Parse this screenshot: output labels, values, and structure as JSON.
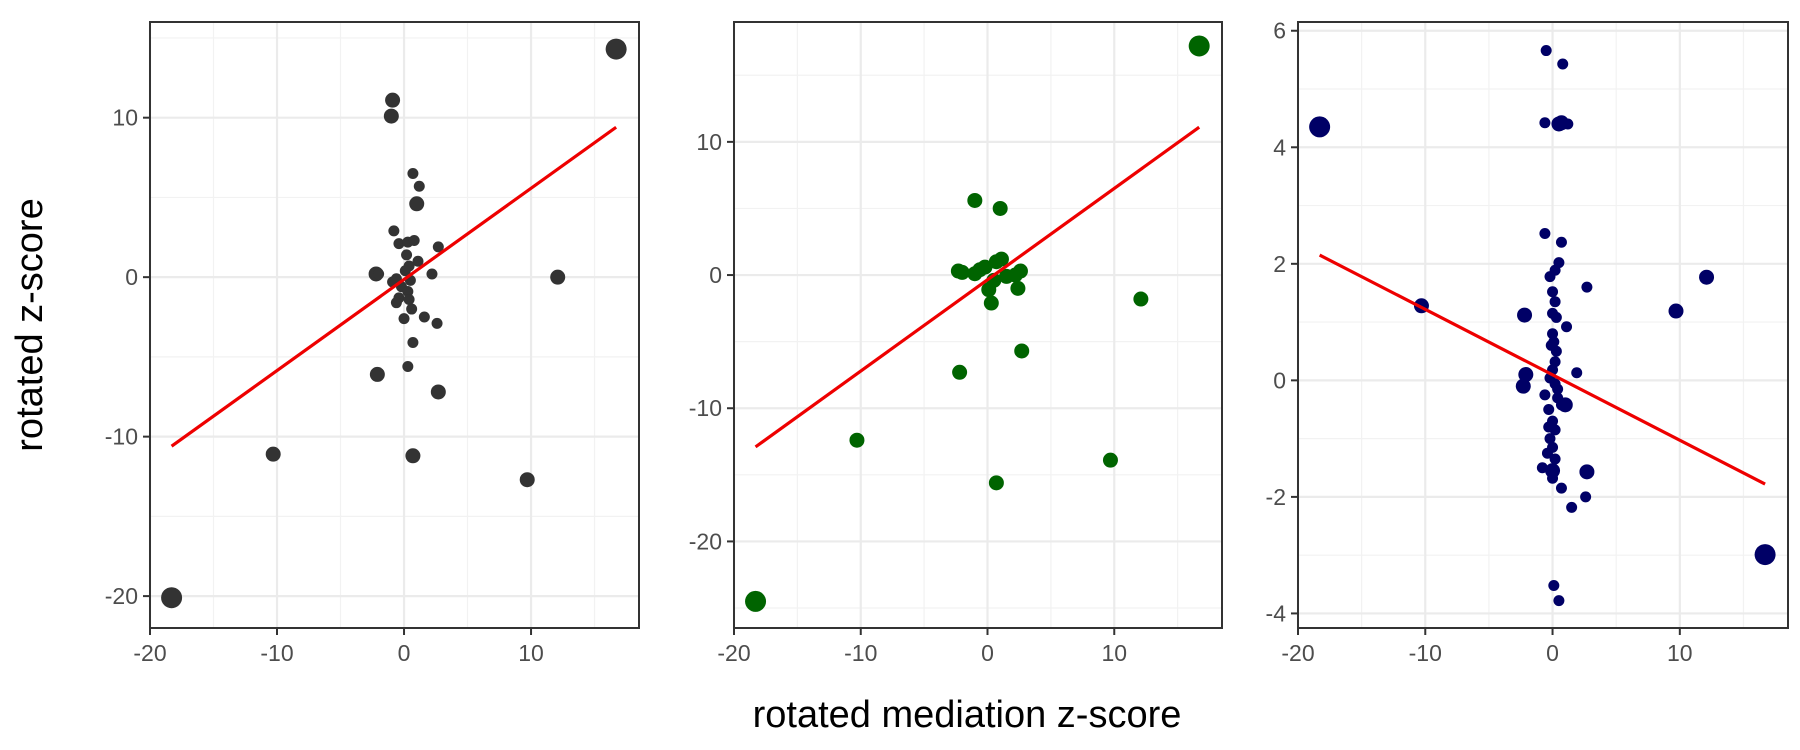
{
  "figure": {
    "xlabel": "rotated mediation z-score",
    "ylabel": "rotated z-score"
  },
  "chart_data": [
    {
      "type": "scatter",
      "xlim": [
        -20,
        18.5
      ],
      "ylim": [
        -22,
        16
      ],
      "xticks": [
        -20,
        -10,
        0,
        10
      ],
      "yticks": [
        -20,
        -10,
        0,
        10
      ],
      "grid": true,
      "point_color": "#333333",
      "line_color": "#ee0000",
      "fit_line": [
        [
          -18.3,
          -10.6
        ],
        [
          16.7,
          9.4
        ]
      ],
      "points": [
        {
          "x": 16.7,
          "y": 14.3,
          "s": "lg"
        },
        {
          "x": -18.3,
          "y": -20.1,
          "s": "lg"
        },
        {
          "x": -10.3,
          "y": -11.1,
          "s": "md"
        },
        {
          "x": 0.7,
          "y": -11.2,
          "s": "md"
        },
        {
          "x": 9.7,
          "y": -12.7,
          "s": "md"
        },
        {
          "x": 12.1,
          "y": 0.0,
          "s": "md"
        },
        {
          "x": -0.9,
          "y": 11.1,
          "s": "md"
        },
        {
          "x": -1.0,
          "y": 10.1,
          "s": "md"
        },
        {
          "x": 1.0,
          "y": 4.6,
          "s": "md"
        },
        {
          "x": -2.1,
          "y": -6.1,
          "s": "md"
        },
        {
          "x": 2.7,
          "y": -7.2,
          "s": "md"
        },
        {
          "x": -2.2,
          "y": 0.2,
          "s": "md"
        },
        {
          "x": -2.0,
          "y": 0.2,
          "s": "sm"
        },
        {
          "x": 0.7,
          "y": 6.5,
          "s": "sm"
        },
        {
          "x": 1.2,
          "y": 5.7,
          "s": "sm"
        },
        {
          "x": -0.8,
          "y": 2.9,
          "s": "sm"
        },
        {
          "x": -0.4,
          "y": 2.1,
          "s": "sm"
        },
        {
          "x": 0.3,
          "y": 2.2,
          "s": "sm"
        },
        {
          "x": 0.8,
          "y": 2.3,
          "s": "sm"
        },
        {
          "x": 2.7,
          "y": 1.9,
          "s": "sm"
        },
        {
          "x": 0.2,
          "y": 1.4,
          "s": "sm"
        },
        {
          "x": 1.1,
          "y": 1.0,
          "s": "sm"
        },
        {
          "x": 0.4,
          "y": 0.7,
          "s": "sm"
        },
        {
          "x": 0.1,
          "y": 0.4,
          "s": "sm"
        },
        {
          "x": 2.2,
          "y": 0.2,
          "s": "sm"
        },
        {
          "x": -0.6,
          "y": -0.1,
          "s": "sm"
        },
        {
          "x": -0.9,
          "y": -0.3,
          "s": "sm"
        },
        {
          "x": 0.5,
          "y": -0.2,
          "s": "sm"
        },
        {
          "x": -0.2,
          "y": -0.6,
          "s": "sm"
        },
        {
          "x": 0.3,
          "y": -0.9,
          "s": "sm"
        },
        {
          "x": -0.4,
          "y": -1.3,
          "s": "sm"
        },
        {
          "x": 0.4,
          "y": -1.4,
          "s": "sm"
        },
        {
          "x": -0.6,
          "y": -1.6,
          "s": "sm"
        },
        {
          "x": 0.6,
          "y": -2.0,
          "s": "sm"
        },
        {
          "x": 1.6,
          "y": -2.5,
          "s": "sm"
        },
        {
          "x": 0.0,
          "y": -2.6,
          "s": "sm"
        },
        {
          "x": 2.6,
          "y": -2.9,
          "s": "sm"
        },
        {
          "x": 0.7,
          "y": -4.1,
          "s": "sm"
        },
        {
          "x": 0.3,
          "y": -5.6,
          "s": "sm"
        }
      ]
    },
    {
      "type": "scatter",
      "xlim": [
        -20,
        18.5
      ],
      "ylim": [
        -26.5,
        19
      ],
      "xticks": [
        -20,
        -10,
        0,
        10
      ],
      "yticks": [
        -20,
        -10,
        0,
        10
      ],
      "grid": true,
      "point_color": "#006400",
      "line_color": "#ee0000",
      "fit_line": [
        [
          -18.3,
          -12.9
        ],
        [
          16.7,
          11.1
        ]
      ],
      "points": [
        {
          "x": 16.7,
          "y": 17.2,
          "s": "lg"
        },
        {
          "x": -18.3,
          "y": -24.5,
          "s": "lg"
        },
        {
          "x": -10.3,
          "y": -12.4,
          "s": "md"
        },
        {
          "x": 0.7,
          "y": -15.6,
          "s": "md"
        },
        {
          "x": 9.7,
          "y": -13.9,
          "s": "md"
        },
        {
          "x": 12.1,
          "y": -1.8,
          "s": "md"
        },
        {
          "x": -1.0,
          "y": 5.6,
          "s": "md"
        },
        {
          "x": 1.0,
          "y": 5.0,
          "s": "md"
        },
        {
          "x": -2.2,
          "y": -7.3,
          "s": "md"
        },
        {
          "x": 2.7,
          "y": -5.7,
          "s": "md"
        },
        {
          "x": -2.3,
          "y": 0.3,
          "s": "md"
        },
        {
          "x": -2.0,
          "y": 0.2,
          "s": "md"
        },
        {
          "x": -1.0,
          "y": 0.1,
          "s": "md"
        },
        {
          "x": -0.6,
          "y": 0.4,
          "s": "md"
        },
        {
          "x": -0.2,
          "y": 0.6,
          "s": "md"
        },
        {
          "x": 0.7,
          "y": 1.0,
          "s": "md"
        },
        {
          "x": 1.1,
          "y": 1.2,
          "s": "md"
        },
        {
          "x": 1.5,
          "y": -0.1,
          "s": "md"
        },
        {
          "x": 2.2,
          "y": 0.0,
          "s": "md"
        },
        {
          "x": 2.6,
          "y": 0.3,
          "s": "md"
        },
        {
          "x": 0.1,
          "y": -1.1,
          "s": "md"
        },
        {
          "x": 2.4,
          "y": -1.0,
          "s": "md"
        },
        {
          "x": 0.3,
          "y": -2.1,
          "s": "md"
        },
        {
          "x": 0.5,
          "y": -0.4,
          "s": "md"
        }
      ]
    },
    {
      "type": "scatter",
      "xlim": [
        -20,
        18.5
      ],
      "ylim": [
        -4.25,
        6.15
      ],
      "xticks": [
        -20,
        -10,
        0,
        10
      ],
      "yticks": [
        -4,
        -2,
        0,
        2,
        4,
        6
      ],
      "grid": true,
      "point_color": "#000066",
      "line_color": "#ee0000",
      "fit_line": [
        [
          -18.3,
          2.15
        ],
        [
          16.7,
          -1.78
        ]
      ],
      "points": [
        {
          "x": -18.3,
          "y": 4.35,
          "s": "lg"
        },
        {
          "x": 16.7,
          "y": -2.99,
          "s": "lg"
        },
        {
          "x": -10.3,
          "y": 1.28,
          "s": "md"
        },
        {
          "x": 9.7,
          "y": 1.19,
          "s": "md"
        },
        {
          "x": 12.1,
          "y": 1.77,
          "s": "md"
        },
        {
          "x": -2.2,
          "y": 1.12,
          "s": "md"
        },
        {
          "x": 0.7,
          "y": 4.42,
          "s": "md"
        },
        {
          "x": 0.5,
          "y": 4.4,
          "s": "md"
        },
        {
          "x": 2.7,
          "y": -1.57,
          "s": "md"
        },
        {
          "x": -2.3,
          "y": -0.1,
          "s": "md"
        },
        {
          "x": -2.1,
          "y": 0.1,
          "s": "md"
        },
        {
          "x": 1.0,
          "y": -0.42,
          "s": "md"
        },
        {
          "x": 0.0,
          "y": -1.55,
          "s": "md"
        },
        {
          "x": -0.5,
          "y": 5.66,
          "s": "sm"
        },
        {
          "x": 0.8,
          "y": 5.43,
          "s": "sm"
        },
        {
          "x": -0.6,
          "y": 4.42,
          "s": "sm"
        },
        {
          "x": 1.2,
          "y": 4.4,
          "s": "sm"
        },
        {
          "x": -0.6,
          "y": 2.52,
          "s": "sm"
        },
        {
          "x": 0.7,
          "y": 2.37,
          "s": "sm"
        },
        {
          "x": 0.5,
          "y": 2.02,
          "s": "sm"
        },
        {
          "x": 0.2,
          "y": 1.89,
          "s": "sm"
        },
        {
          "x": -0.2,
          "y": 1.78,
          "s": "sm"
        },
        {
          "x": 2.7,
          "y": 1.6,
          "s": "sm"
        },
        {
          "x": 0.0,
          "y": 1.52,
          "s": "sm"
        },
        {
          "x": 0.2,
          "y": 1.35,
          "s": "sm"
        },
        {
          "x": 0.0,
          "y": 1.15,
          "s": "sm"
        },
        {
          "x": 0.3,
          "y": 1.08,
          "s": "sm"
        },
        {
          "x": 1.1,
          "y": 0.92,
          "s": "sm"
        },
        {
          "x": 0.0,
          "y": 0.8,
          "s": "sm"
        },
        {
          "x": 0.1,
          "y": 0.66,
          "s": "sm"
        },
        {
          "x": 0.3,
          "y": 0.5,
          "s": "sm"
        },
        {
          "x": 0.2,
          "y": 0.32,
          "s": "sm"
        },
        {
          "x": 0.0,
          "y": 0.18,
          "s": "sm"
        },
        {
          "x": 1.9,
          "y": 0.13,
          "s": "sm"
        },
        {
          "x": -0.2,
          "y": 0.04,
          "s": "sm"
        },
        {
          "x": 0.2,
          "y": -0.06,
          "s": "sm"
        },
        {
          "x": -0.6,
          "y": -0.25,
          "s": "sm"
        },
        {
          "x": 0.4,
          "y": -0.3,
          "s": "sm"
        },
        {
          "x": -0.3,
          "y": -0.5,
          "s": "sm"
        },
        {
          "x": 0.7,
          "y": -0.42,
          "s": "sm"
        },
        {
          "x": 0.0,
          "y": -0.7,
          "s": "sm"
        },
        {
          "x": 0.2,
          "y": -0.85,
          "s": "sm"
        },
        {
          "x": -0.2,
          "y": -1.0,
          "s": "sm"
        },
        {
          "x": 0.0,
          "y": -1.15,
          "s": "sm"
        },
        {
          "x": -0.4,
          "y": -1.25,
          "s": "sm"
        },
        {
          "x": 0.2,
          "y": -1.35,
          "s": "sm"
        },
        {
          "x": -0.8,
          "y": -1.5,
          "s": "sm"
        },
        {
          "x": 0.0,
          "y": -1.68,
          "s": "sm"
        },
        {
          "x": 0.7,
          "y": -1.85,
          "s": "sm"
        },
        {
          "x": 2.6,
          "y": -2.0,
          "s": "sm"
        },
        {
          "x": 1.5,
          "y": -2.18,
          "s": "sm"
        },
        {
          "x": -0.3,
          "y": -0.8,
          "s": "sm"
        },
        {
          "x": 0.4,
          "y": -0.15,
          "s": "sm"
        },
        {
          "x": -0.1,
          "y": 0.6,
          "s": "sm"
        },
        {
          "x": 0.1,
          "y": -3.52,
          "s": "sm"
        },
        {
          "x": 0.5,
          "y": -3.78,
          "s": "sm"
        }
      ]
    }
  ]
}
